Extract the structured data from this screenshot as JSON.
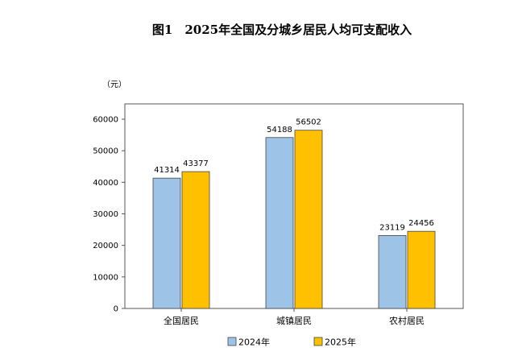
{
  "chart_data": {
    "type": "bar",
    "title": "图1　2025年全国及分城乡居民人均可支配收入",
    "unit_label": "（元）",
    "categories": [
      "全国居民",
      "城镇居民",
      "农村居民"
    ],
    "series": [
      {
        "name": "2024年",
        "values": [
          41314,
          54188,
          23119
        ],
        "color": "#9DC3E6"
      },
      {
        "name": "2025年",
        "values": [
          43377,
          56502,
          24456
        ],
        "color": "#FFC000"
      }
    ],
    "ylim": [
      0,
      60000
    ],
    "yticks": [
      0,
      10000,
      20000,
      30000,
      40000,
      50000,
      60000
    ],
    "grid": false,
    "legend_position": "bottom"
  }
}
